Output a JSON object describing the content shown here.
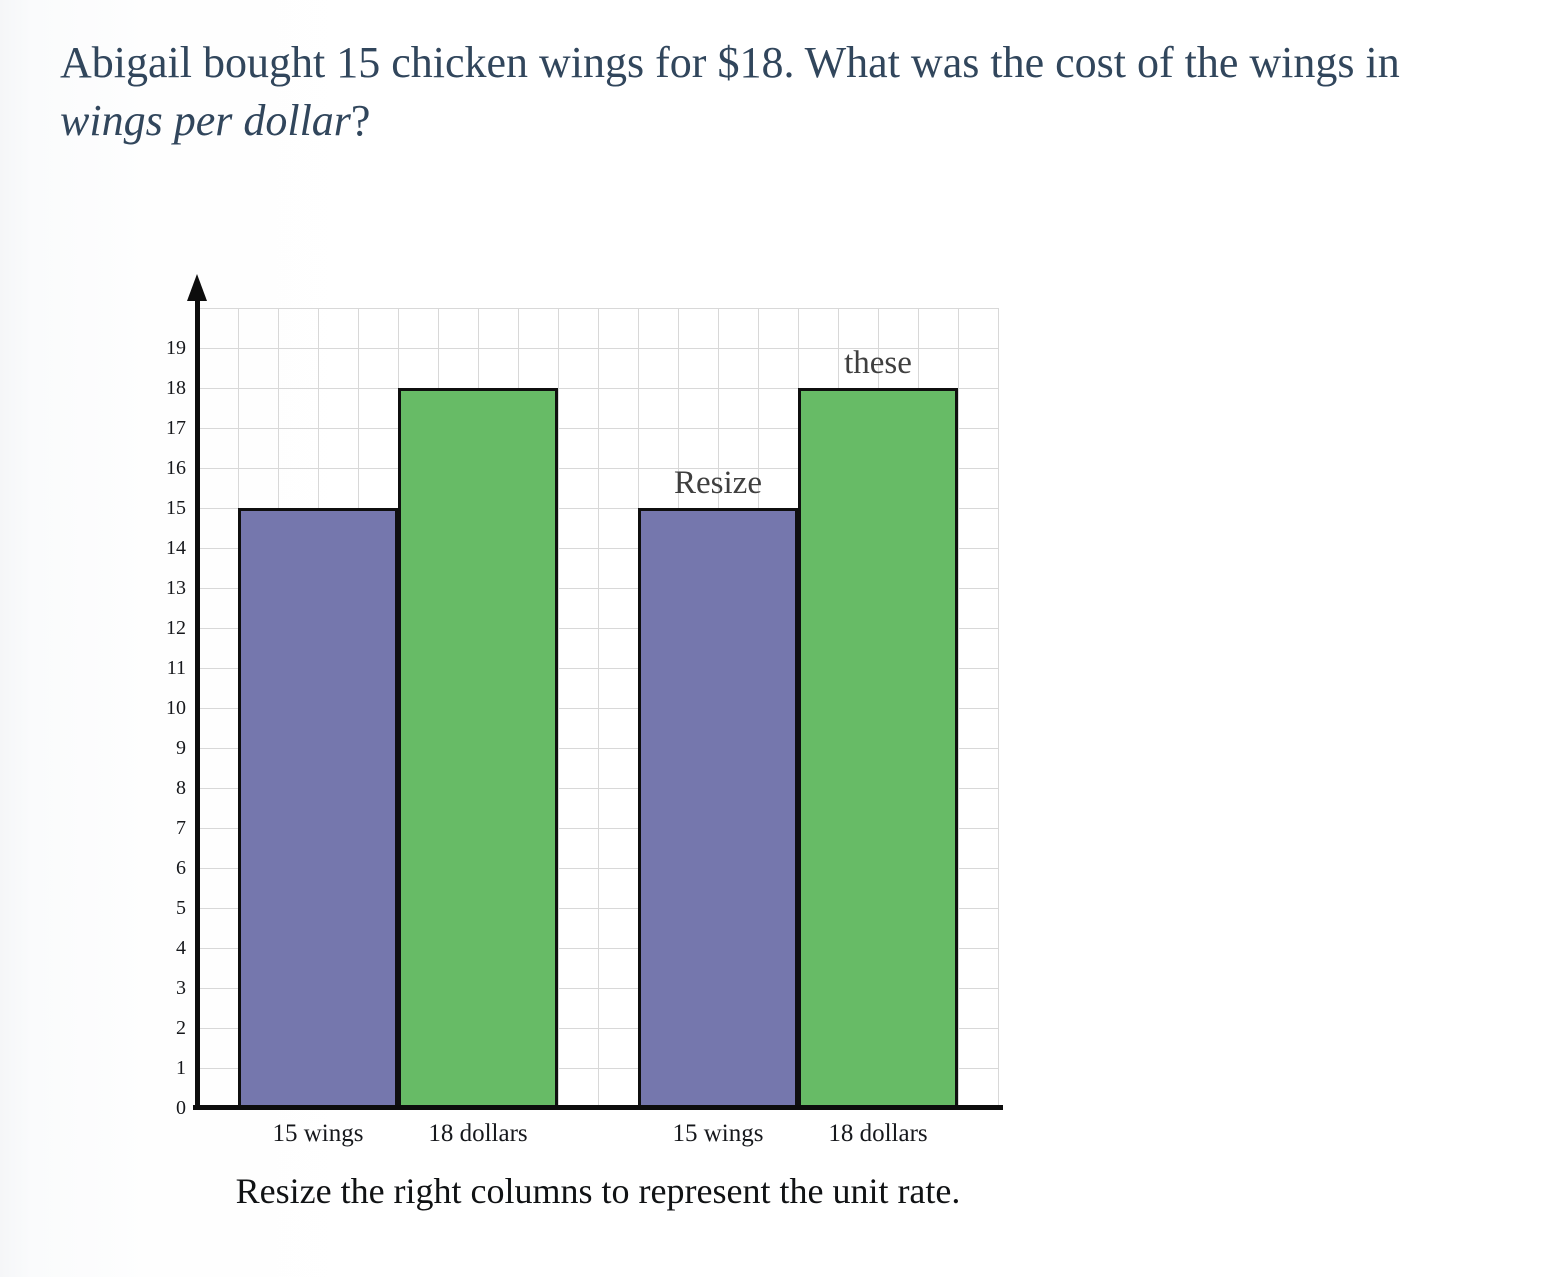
{
  "question": {
    "text_regular": "Abigail bought 15 chicken wings for $18. What was the cost of the wings in",
    "text_italic": "wings per dollar",
    "text_suffix": "?"
  },
  "chart_data": {
    "type": "bar",
    "title": "",
    "xlabel": "",
    "ylabel": "",
    "categories": [
      "15 wings",
      "18 dollars",
      "15 wings",
      "18 dollars"
    ],
    "values": [
      15,
      18,
      15,
      18
    ],
    "bar_colors": [
      "#7577ad",
      "#67bb66",
      "#7577ad",
      "#67bb66"
    ],
    "ylim": [
      0,
      20
    ],
    "yticks": [
      0,
      1,
      2,
      3,
      4,
      5,
      6,
      7,
      8,
      9,
      10,
      11,
      12,
      13,
      14,
      15,
      16,
      17,
      18,
      19
    ],
    "grid": true,
    "legend": false,
    "annotations": [
      {
        "text": "Resize",
        "bar_index": 2
      },
      {
        "text": "these",
        "bar_index": 3
      }
    ],
    "interactable_bars": [
      2,
      3
    ]
  },
  "caption": "Resize the right columns to represent the unit rate.",
  "colors": {
    "title_text": "#31465c",
    "axis": "#0d0d0d",
    "grid_line": "#d8d8d8",
    "bar_purple": "#7577ad",
    "bar_green": "#67bb66",
    "annotation_text": "#3f3f3f",
    "tick_text": "#16181c"
  }
}
